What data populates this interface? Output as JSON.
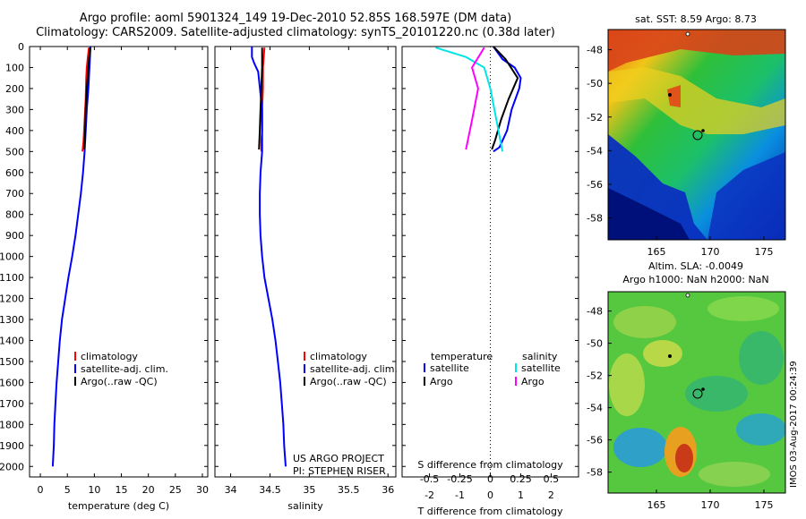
{
  "header": {
    "line1": "Argo profile: aoml 5901324_149 19-Dec-2010 52.85S 168.597E (DM data)",
    "line2": "Climatology: CARS2009. Satellite-adjusted climatology: synTS_20101220.nc (0.38d later)"
  },
  "colors": {
    "climatology": "#ff0000",
    "satellite": "#0000ff",
    "argo": "#000000",
    "sat_salinity": "#00e5e5",
    "argo_salinity": "#ff00ff"
  },
  "chart_data": [
    {
      "type": "line",
      "panel": "temperature",
      "xlabel": "temperature (deg C)",
      "ylabel": "",
      "xlim": [
        -2,
        31
      ],
      "ylim": [
        2050,
        0
      ],
      "xticks": [
        "0",
        "5",
        "10",
        "15",
        "20",
        "25",
        "30"
      ],
      "yticks": [
        "0",
        "100",
        "200",
        "300",
        "400",
        "500",
        "600",
        "700",
        "800",
        "900",
        "1000",
        "1100",
        "1200",
        "1300",
        "1400",
        "1500",
        "1600",
        "1700",
        "1800",
        "1900",
        "2000"
      ],
      "legend": [
        "climatology",
        "satellite-adj. clim.",
        "Argo(..raw -QC)"
      ],
      "series": [
        {
          "name": "climatology",
          "color": "red",
          "x": [
            9.0,
            8.8,
            8.6,
            8.5,
            8.4,
            8.2,
            8.0,
            7.8
          ],
          "y": [
            5,
            50,
            100,
            150,
            250,
            350,
            450,
            500
          ]
        },
        {
          "name": "satellite-adj. clim.",
          "color": "blue",
          "x": [
            9.3,
            9.1,
            8.9,
            8.6,
            8.4,
            8.2,
            7.9,
            7.5,
            7.0,
            6.5,
            5.9,
            5.2,
            4.6,
            4.0,
            3.6,
            3.3,
            3.0,
            2.8,
            2.6,
            2.5,
            2.3
          ],
          "y": [
            0,
            100,
            200,
            300,
            400,
            500,
            600,
            700,
            800,
            900,
            1000,
            1100,
            1200,
            1300,
            1400,
            1500,
            1600,
            1700,
            1800,
            1900,
            2000
          ]
        },
        {
          "name": "Argo(..raw -QC)",
          "color": "black",
          "x": [
            9.2,
            8.9,
            8.6,
            8.4,
            8.3,
            8.2,
            8.1
          ],
          "y": [
            5,
            100,
            200,
            300,
            400,
            450,
            490
          ]
        }
      ]
    },
    {
      "type": "line",
      "panel": "salinity",
      "xlabel": "salinity",
      "ylabel": "",
      "xlim": [
        33.8,
        36.1
      ],
      "ylim": [
        2050,
        0
      ],
      "xticks": [
        "34",
        "34.5",
        "35",
        "35.5",
        "36"
      ],
      "legend": [
        "climatology",
        "satellite-adj. clim.",
        "Argo(..raw -QC)"
      ],
      "annotations": [
        "US ARGO PROJECT",
        "PI: STEPHEN RISER"
      ],
      "series": [
        {
          "name": "climatology",
          "color": "red",
          "x": [
            34.43,
            34.42,
            34.41,
            34.41,
            34.4,
            34.4,
            34.39,
            34.39
          ],
          "y": [
            5,
            50,
            100,
            200,
            300,
            400,
            450,
            500
          ]
        },
        {
          "name": "satellite-adj. clim.",
          "color": "blue",
          "x": [
            34.27,
            34.27,
            34.3,
            34.35,
            34.4,
            34.4,
            34.38,
            34.37,
            34.37,
            34.38,
            34.4,
            34.43,
            34.48,
            34.53,
            34.57,
            34.6,
            34.63,
            34.65,
            34.67,
            34.68,
            34.7
          ],
          "y": [
            0,
            50,
            80,
            120,
            300,
            500,
            600,
            700,
            800,
            900,
            1000,
            1100,
            1200,
            1300,
            1400,
            1500,
            1600,
            1700,
            1800,
            1900,
            2000
          ]
        },
        {
          "name": "Argo(..raw -QC)",
          "color": "black",
          "x": [
            34.4,
            34.4,
            34.39,
            34.38,
            34.37,
            34.36
          ],
          "y": [
            5,
            100,
            200,
            300,
            400,
            490
          ]
        }
      ]
    },
    {
      "type": "line",
      "panel": "differences",
      "xlabel": "T difference from climatology",
      "xlabel_secondary": "S difference from climatology",
      "xlim": [
        -2.9,
        2.9
      ],
      "ylim": [
        2050,
        0
      ],
      "xticks_T": [
        "-2",
        "-1",
        "0",
        "1",
        "2"
      ],
      "xticks_S": [
        "-0.5",
        "-0.25",
        "0",
        "0.25",
        "0.5"
      ],
      "legend": {
        "temperature_header": "temperature",
        "salinity_header": "salinity",
        "items": [
          "satellite",
          "Argo",
          "satellite",
          "Argo"
        ]
      },
      "series": [
        {
          "name": "satellite",
          "group": "temperature",
          "color": "blue",
          "x": [
            0.1,
            0.4,
            0.8,
            1.0,
            0.95,
            0.7,
            0.55,
            0.3,
            0.1
          ],
          "y": [
            0,
            60,
            100,
            150,
            200,
            300,
            400,
            480,
            500
          ]
        },
        {
          "name": "Argo",
          "group": "temperature",
          "color": "black",
          "x": [
            0.1,
            0.5,
            0.9,
            0.6,
            0.35,
            0.15,
            0.05
          ],
          "y": [
            0,
            60,
            150,
            250,
            350,
            450,
            490
          ]
        },
        {
          "name": "satellite",
          "group": "salinity",
          "color": "cyan",
          "x": [
            -0.45,
            -0.2,
            -0.05,
            0.0,
            0.05,
            0.1
          ],
          "y": [
            5,
            50,
            100,
            200,
            350,
            500
          ]
        },
        {
          "name": "Argo",
          "group": "salinity",
          "color": "magenta",
          "x": [
            -0.05,
            -0.15,
            -0.1,
            -0.15,
            -0.2
          ],
          "y": [
            5,
            100,
            200,
            350,
            490
          ]
        }
      ]
    },
    {
      "type": "heatmap",
      "panel": "sst-map",
      "title": "sat. SST: 8.59 Argo: 8.73",
      "xticks": [
        "165",
        "170",
        "175"
      ],
      "yticks": [
        "-48",
        "-50",
        "-52",
        "-54",
        "-56",
        "-58"
      ],
      "xlim": [
        160.5,
        177
      ],
      "ylim": [
        -59.3,
        -46.8
      ],
      "argo_position": {
        "lon": 168.597,
        "lat": -52.85
      }
    },
    {
      "type": "heatmap",
      "panel": "sla-map",
      "title": "Altim. SLA: -0.0049",
      "subtitle": "Argo h1000: NaN h2000: NaN",
      "xticks": [
        "165",
        "170",
        "175"
      ],
      "yticks": [
        "-48",
        "-50",
        "-52",
        "-54",
        "-56",
        "-58"
      ],
      "xlim": [
        160.5,
        177
      ],
      "ylim": [
        -59.3,
        -46.8
      ],
      "argo_position": {
        "lon": 168.597,
        "lat": -52.85
      }
    }
  ],
  "footer": {
    "credit": "IMOS 03-Aug-2017 00:24:39"
  }
}
